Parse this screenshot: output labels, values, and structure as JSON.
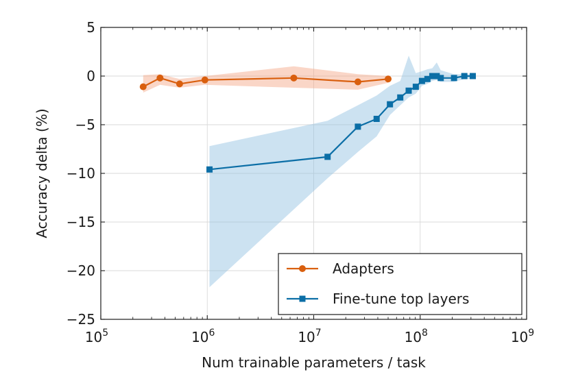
{
  "chart_data": {
    "type": "line",
    "xlabel": "Num trainable parameters / task",
    "ylabel": "Accuracy delta (%)",
    "xscale": "log",
    "xlim": [
      100000,
      1000000000
    ],
    "ylim": [
      -25,
      5
    ],
    "grid": true,
    "legend_position": "lower-right",
    "x_ticks": [
      {
        "value": 100000,
        "base": "10",
        "exp": "5"
      },
      {
        "value": 1000000,
        "base": "10",
        "exp": "6"
      },
      {
        "value": 10000000,
        "base": "10",
        "exp": "7"
      },
      {
        "value": 100000000,
        "base": "10",
        "exp": "8"
      },
      {
        "value": 1000000000,
        "base": "10",
        "exp": "9"
      }
    ],
    "y_ticks": [
      {
        "value": 5,
        "label": "5"
      },
      {
        "value": 0,
        "label": "0"
      },
      {
        "value": -5,
        "label": "−5"
      },
      {
        "value": -10,
        "label": "−10"
      },
      {
        "value": -15,
        "label": "−15"
      },
      {
        "value": -20,
        "label": "−20"
      },
      {
        "value": -25,
        "label": "−25"
      }
    ],
    "series": [
      {
        "name": "Adapters",
        "color": "#d95f0e",
        "band_color": "#f4a582",
        "marker": "circle",
        "x": [
          250000,
          360000,
          550000,
          950000,
          6500000,
          26000000,
          50000000
        ],
        "y": [
          -1.1,
          -0.2,
          -0.8,
          -0.4,
          -0.2,
          -0.6,
          -0.3
        ],
        "lower": [
          -1.7,
          -0.9,
          -1.2,
          -0.9,
          -1.2,
          -1.4,
          -0.7
        ],
        "upper": [
          0.1,
          0.2,
          -0.3,
          0.0,
          1.0,
          0.2,
          0.0
        ]
      },
      {
        "name": "Fine-tune top layers",
        "color": "#0b6ea6",
        "band_color": "#8fbfdf",
        "marker": "square",
        "x": [
          1050000,
          13500000,
          26000000,
          39000000,
          52000000,
          65000000,
          78000000,
          91000000,
          104000000,
          117000000,
          130000000,
          143000000,
          156000000,
          208000000,
          260000000,
          312000000
        ],
        "y": [
          -9.6,
          -8.3,
          -5.2,
          -4.4,
          -2.9,
          -2.2,
          -1.5,
          -1.1,
          -0.5,
          -0.3,
          0.0,
          0.0,
          -0.2,
          -0.2,
          0.0,
          0.0
        ],
        "lower": [
          -21.7,
          -10.5,
          -7.8,
          -6.2,
          -4.0,
          -3.0,
          -2.2,
          -1.8,
          -1.0,
          -0.8,
          -0.5,
          -0.4,
          -0.6,
          -0.6,
          -0.3,
          -0.3
        ],
        "upper": [
          -7.2,
          -4.6,
          -3.0,
          -2.0,
          -1.0,
          -0.5,
          2.1,
          0.3,
          0.5,
          0.7,
          0.8,
          1.4,
          0.6,
          0.2,
          0.2,
          0.2
        ]
      }
    ]
  }
}
